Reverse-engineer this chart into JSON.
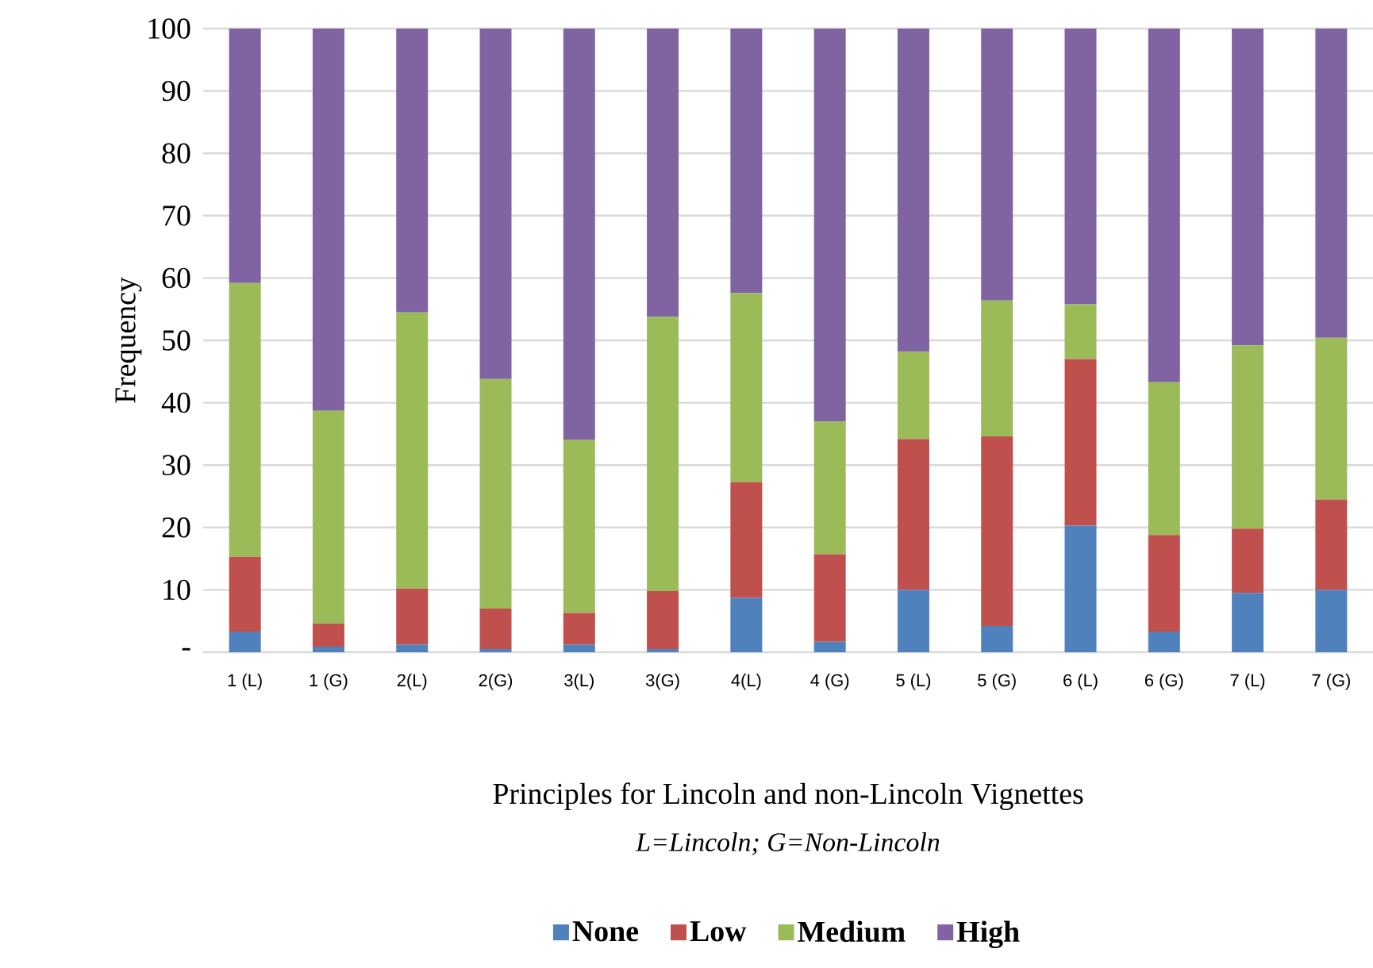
{
  "chart_data": {
    "type": "bar",
    "stacked": true,
    "xlabel": "Principles for Lincoln and non-Lincoln Vignettes",
    "ylabel": "Frequency",
    "annotations": [
      "L=Lincoln; G=Non-Lincoln"
    ],
    "categories": [
      "1 (L)",
      "1 (G)",
      "2(L)",
      "2(G)",
      "3(L)",
      "3(G)",
      "4(L)",
      "4 (G)",
      "5 (L)",
      "5 (G)",
      "6 (L)",
      "6 (G)",
      "7 (L)",
      "7 (G)"
    ],
    "series": [
      {
        "name": "None",
        "color": "#4f81bd",
        "values": [
          3.3,
          0.9,
          1.2,
          0.5,
          1.2,
          0.5,
          8.7,
          1.7,
          10.0,
          4.2,
          20.3,
          3.3,
          9.5,
          10.0
        ]
      },
      {
        "name": "Low",
        "color": "#c0504d",
        "values": [
          12.0,
          3.7,
          9.0,
          6.5,
          5.1,
          9.3,
          18.6,
          14.0,
          24.2,
          30.4,
          26.7,
          15.5,
          10.3,
          14.5
        ]
      },
      {
        "name": "Medium",
        "color": "#9bbb59",
        "values": [
          43.9,
          34.1,
          44.3,
          36.8,
          27.8,
          44.0,
          30.3,
          21.3,
          14.0,
          21.8,
          8.8,
          24.5,
          29.4,
          25.9
        ]
      },
      {
        "name": "High",
        "color": "#8064a2",
        "values": [
          40.8,
          61.3,
          45.5,
          56.2,
          65.9,
          46.2,
          42.4,
          63.0,
          51.8,
          43.6,
          44.2,
          56.7,
          50.8,
          49.6
        ]
      }
    ],
    "ylim": [
      0,
      100
    ],
    "yticks": [
      {
        "value": 0,
        "label": "-"
      },
      10,
      20,
      30,
      40,
      50,
      60,
      70,
      80,
      90,
      100
    ],
    "grid": "y",
    "legend": "bottom"
  }
}
